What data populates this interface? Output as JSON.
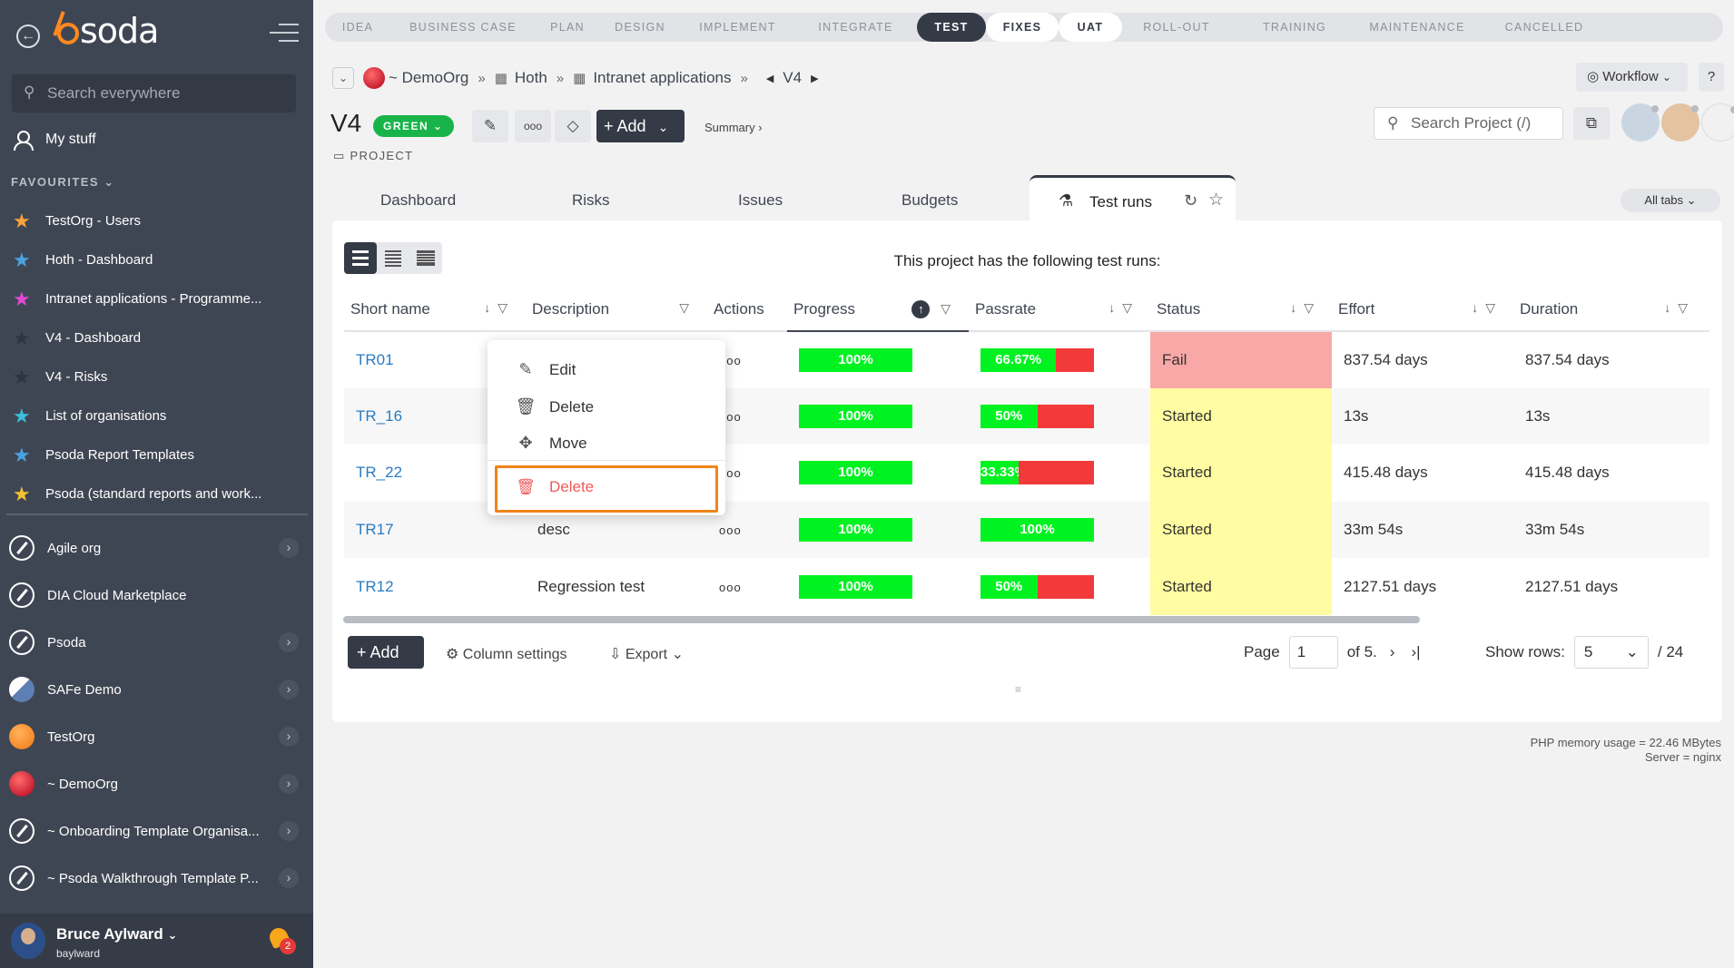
{
  "sidebar": {
    "logo": "psoda",
    "search_placeholder": "Search everywhere",
    "my_stuff": "My stuff",
    "favourites_title": "FAVOURITES",
    "favourites": [
      {
        "label": "TestOrg - Users",
        "color": "#f7a23b"
      },
      {
        "label": "Hoth - Dashboard",
        "color": "#4aa3df"
      },
      {
        "label": "Intranet applications - Programme...",
        "color": "#e04ad6"
      },
      {
        "label": "V4 - Dashboard",
        "color": "#2f3540"
      },
      {
        "label": "V4 - Risks",
        "color": "#2f3540"
      },
      {
        "label": "List of organisations",
        "color": "#3bbfdc"
      },
      {
        "label": "Psoda Report Templates",
        "color": "#4aa3df"
      },
      {
        "label": "Psoda (standard reports and work...",
        "color": "#f4c035"
      }
    ],
    "orgs": [
      {
        "label": "Agile org",
        "icon": "compass-icon",
        "chevron": true
      },
      {
        "label": "DIA Cloud Marketplace",
        "icon": "compass-icon",
        "chevron": false
      },
      {
        "label": "Psoda",
        "icon": "compass-icon",
        "chevron": true
      },
      {
        "label": "SAFe Demo",
        "icon": "safe-logo",
        "chevron": true
      },
      {
        "label": "TestOrg",
        "icon": "orange-logo",
        "chevron": true
      },
      {
        "label": "~ DemoOrg",
        "icon": "red-logo",
        "chevron": true
      },
      {
        "label": "~ Onboarding Template Organisa...",
        "icon": "compass-icon",
        "chevron": true
      },
      {
        "label": "~ Psoda Walkthrough Template P...",
        "icon": "compass-icon",
        "chevron": true
      }
    ],
    "user_name": "Bruce Aylward",
    "user_login": "baylward",
    "notification_count": "2"
  },
  "stages": [
    {
      "label": "IDEA",
      "state": "todo",
      "w": 72
    },
    {
      "label": "BUSINESS CASE",
      "state": "todo",
      "w": 160
    },
    {
      "label": "PLAN",
      "state": "todo",
      "w": 70
    },
    {
      "label": "DESIGN",
      "state": "todo",
      "w": 90
    },
    {
      "label": "IMPLEMENT",
      "state": "todo",
      "w": 125
    },
    {
      "label": "INTEGRATE",
      "state": "todo",
      "w": 135
    },
    {
      "label": "TEST",
      "state": "active",
      "w": 76
    },
    {
      "label": "FIXES",
      "state": "done",
      "w": 80
    },
    {
      "label": "UAT",
      "state": "done",
      "w": 70
    },
    {
      "label": "ROLL-OUT",
      "state": "todo",
      "w": 120
    },
    {
      "label": "TRAINING",
      "state": "todo",
      "w": 140
    },
    {
      "label": "MAINTENANCE",
      "state": "todo",
      "w": 130
    },
    {
      "label": "CANCELLED",
      "state": "todo",
      "w": 150
    }
  ],
  "breadcrumb": {
    "org": "~ DemoOrg",
    "programme": "Hoth",
    "portfolio": "Intranet applications",
    "project": "V4"
  },
  "workflow_label": "Workflow",
  "help_label": "?",
  "project": {
    "title": "V4",
    "status": "GREEN",
    "type_label": "PROJECT",
    "add_label": "Add",
    "summary_label": "Summary ›",
    "search_placeholder": "Search Project (/)"
  },
  "tabs": [
    "Dashboard",
    "Risks",
    "Issues",
    "Budgets"
  ],
  "active_tab": "Test runs",
  "all_tabs_label": "All tabs",
  "panel_caption": "This project has the following test runs:",
  "columns": [
    "Short name",
    "Description",
    "Actions",
    "Progress",
    "Passrate",
    "Status",
    "Effort",
    "Duration"
  ],
  "rows": [
    {
      "short": "TR01",
      "desc": "",
      "progress": 100,
      "progress_label": "100%",
      "passrate": 66.67,
      "passrate_label": "66.67%",
      "status": "Fail",
      "effort": "837.54 days",
      "duration": "837.54 days"
    },
    {
      "short": "TR_16",
      "desc": "",
      "progress": 100,
      "progress_label": "100%",
      "passrate": 50,
      "passrate_label": "50%",
      "status": "Started",
      "effort": "13s",
      "duration": "13s"
    },
    {
      "short": "TR_22",
      "desc": "",
      "progress": 100,
      "progress_label": "100%",
      "passrate": 33.33,
      "passrate_label": "33.33%",
      "status": "Started",
      "effort": "415.48 days",
      "duration": "415.48 days"
    },
    {
      "short": "TR17",
      "desc": "desc",
      "progress": 100,
      "progress_label": "100%",
      "passrate": 100,
      "passrate_label": "100%",
      "status": "Started",
      "effort": "33m 54s",
      "duration": "33m 54s"
    },
    {
      "short": "TR12",
      "desc": "Regression test",
      "progress": 100,
      "progress_label": "100%",
      "passrate": 50,
      "passrate_label": "50%",
      "status": "Started",
      "effort": "2127.51 days",
      "duration": "2127.51 days"
    }
  ],
  "actions_glyph": "ooo",
  "context_menu": {
    "edit": "Edit",
    "delete": "Delete",
    "move": "Move",
    "delete_highlighted": "Delete"
  },
  "bottom": {
    "add_label": "Add",
    "column_settings": "Column settings",
    "export": "Export",
    "page_label": "Page",
    "page_value": "1",
    "of_label": "of 5.",
    "show_rows_label": "Show rows:",
    "show_rows_value": "5",
    "total": "/ 24"
  },
  "footer": {
    "memory": "PHP memory usage = 22.46 MBytes",
    "server": "Server = nginx"
  },
  "colors": {
    "sidebar_bg": "#3f4653",
    "accent_dark": "#343a46",
    "green": "#00f221",
    "red": "#f23a3a",
    "fail_bg": "#f9a8a8",
    "started_bg": "#fffca1",
    "highlight": "#f08418",
    "link": "#2a7bc1"
  }
}
